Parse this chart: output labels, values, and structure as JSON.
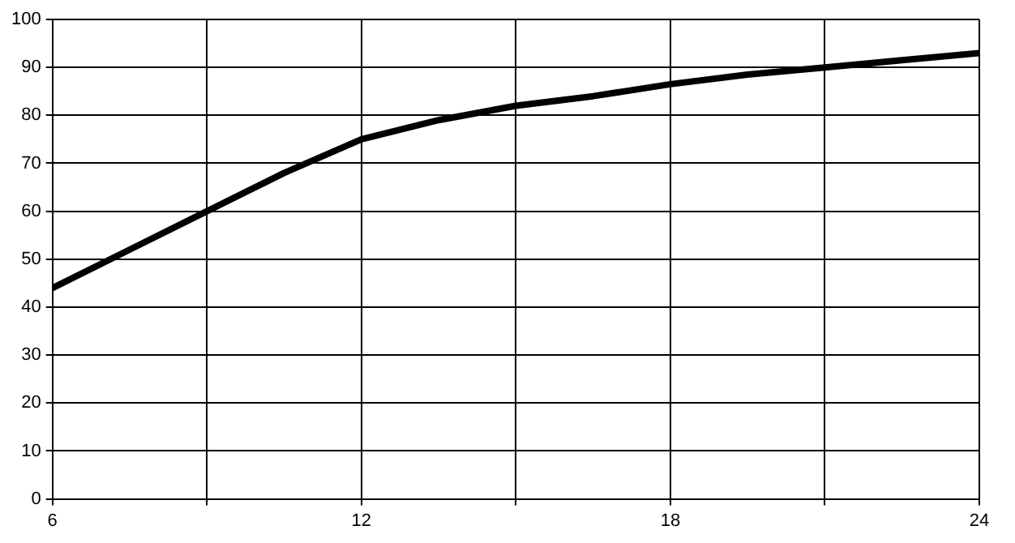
{
  "chart_data": {
    "type": "line",
    "x": [
      6,
      7.5,
      9,
      10.5,
      12,
      13.5,
      15,
      16.5,
      18,
      19.5,
      21,
      22.5,
      24
    ],
    "series": [
      {
        "color": "#000000",
        "values": [
          44,
          52,
          60,
          68,
          75,
          79,
          82,
          84,
          86.5,
          88.5,
          90,
          91.5,
          93
        ]
      }
    ],
    "xlim": [
      6,
      24
    ],
    "xticks": [
      6,
      {
        "value": 9,
        "label": null
      },
      12,
      {
        "value": 15,
        "label": null
      },
      18,
      {
        "value": 21,
        "label": null
      },
      24
    ],
    "ylim": [
      0,
      100
    ],
    "yticks": [
      0,
      10,
      20,
      30,
      40,
      50,
      60,
      70,
      80,
      90,
      100
    ],
    "grid": true,
    "legend": false,
    "marker": "none",
    "line_style": "solid"
  }
}
